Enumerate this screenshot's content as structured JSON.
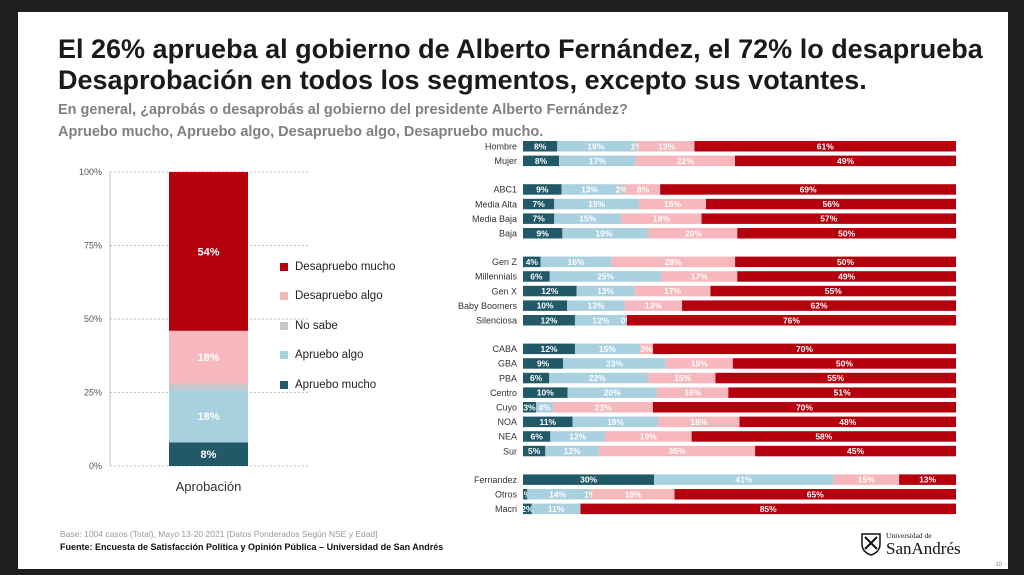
{
  "slide": {
    "title_line1": "El 26% aprueba al gobierno de Alberto Fernández, el 72% lo desaprueba",
    "title_line2": "Desaprobación en todos los segmentos, excepto sus votantes.",
    "subtitle_line1": "En general, ¿aprobás o desaprobás al gobierno del presidente Alberto Fernández?",
    "subtitle_line2": "Apruebo mucho, Apruebo algo, Desapruebo algo, Desapruebo mucho.",
    "base_note": "Base: 1004 casos (Total), Mayo 13-20 2021 [Datos Ponderados Según NSE y Edad]",
    "source": "Fuente: Encuesta de Satisfacción Política y Opinión Pública – Universidad de San Andrés",
    "logo_top": "Universidad de",
    "logo_name": "SanAndrés",
    "page_number": "10"
  },
  "chart_data": [
    {
      "type": "bar",
      "stacked": true,
      "categories": [
        "Aprobación"
      ],
      "ylim": [
        0,
        100
      ],
      "yticks": [
        "0%",
        "25%",
        "50%",
        "75%",
        "100%"
      ],
      "legend_position": "right",
      "series": [
        {
          "name": "Apruebo mucho",
          "values": [
            8
          ],
          "label": "8%",
          "color": "#215968"
        },
        {
          "name": "Apruebo algo",
          "values": [
            18
          ],
          "label": "18%",
          "color": "#a8d0df"
        },
        {
          "name": "No sabe",
          "values": [
            2
          ],
          "label": "",
          "color": "#c8c8c8"
        },
        {
          "name": "Desapruebo algo",
          "values": [
            18
          ],
          "label": "18%",
          "color": "#f6b8bc"
        },
        {
          "name": "Desapruebo mucho",
          "values": [
            54
          ],
          "label": "54%",
          "color": "#b5000d"
        }
      ],
      "legend_order": [
        "Desapruebo mucho",
        "Desapruebo algo",
        "No sabe",
        "Apruebo algo",
        "Apruebo mucho"
      ]
    },
    {
      "type": "bar",
      "orientation": "horizontal",
      "stacked": true,
      "normalized": true,
      "series_names": [
        "Apruebo mucho",
        "Apruebo algo",
        "No sabe",
        "Desapruebo algo",
        "Desapruebo mucho"
      ],
      "colors": [
        "#215968",
        "#a8d0df",
        "#c8c8c8",
        "#f6b8bc",
        "#b5000d"
      ],
      "groups": [
        {
          "rows": [
            {
              "label": "Hombre",
              "values": [
                8,
                18,
                1,
                13,
                61
              ],
              "labels": [
                "8%",
                "18%",
                "1%",
                "13%",
                "61%"
              ]
            },
            {
              "label": "Mujer",
              "values": [
                8,
                17,
                0,
                22,
                49
              ],
              "labels": [
                "8%",
                "17%",
                "",
                "22%",
                "49%"
              ]
            }
          ]
        },
        {
          "rows": [
            {
              "label": "ABC1",
              "values": [
                9,
                13,
                2,
                8,
                69
              ],
              "labels": [
                "9%",
                "13%",
                "2%",
                "8%",
                "69%"
              ]
            },
            {
              "label": "Media Alta",
              "values": [
                7,
                19,
                0,
                15,
                56
              ],
              "labels": [
                "7%",
                "19%",
                "",
                "15%",
                "56%"
              ]
            },
            {
              "label": "Media Baja",
              "values": [
                7,
                15,
                0,
                18,
                57
              ],
              "labels": [
                "7%",
                "15%",
                "",
                "18%",
                "57%"
              ]
            },
            {
              "label": "Baja",
              "values": [
                9,
                19,
                1,
                20,
                50
              ],
              "labels": [
                "9%",
                "19%",
                "",
                "20%",
                "50%"
              ]
            }
          ]
        },
        {
          "rows": [
            {
              "label": "Gen Z",
              "values": [
                4,
                16,
                0,
                28,
                50
              ],
              "labels": [
                "4%",
                "16%",
                "",
                "28%",
                "50%"
              ]
            },
            {
              "label": "Millennials",
              "values": [
                6,
                25,
                0,
                17,
                49
              ],
              "labels": [
                "6%",
                "25%",
                "",
                "17%",
                "49%"
              ]
            },
            {
              "label": "Gen X",
              "values": [
                12,
                13,
                0,
                17,
                55
              ],
              "labels": [
                "12%",
                "13%",
                "",
                "17%",
                "55%"
              ]
            },
            {
              "label": "Baby Boomers",
              "values": [
                10,
                13,
                0,
                13,
                62
              ],
              "labels": [
                "10%",
                "13%",
                "",
                "13%",
                "62%"
              ]
            },
            {
              "label": "Silenciosa",
              "values": [
                12,
                12,
                0,
                0,
                76
              ],
              "labels": [
                "12%",
                "12%",
                "",
                "0%",
                "76%"
              ]
            }
          ]
        },
        {
          "rows": [
            {
              "label": "CABA",
              "values": [
                12,
                15,
                0,
                3,
                70
              ],
              "labels": [
                "12%",
                "15%",
                "",
                "3%",
                "70%"
              ]
            },
            {
              "label": "GBA",
              "values": [
                9,
                23,
                0,
                15,
                50
              ],
              "labels": [
                "9%",
                "23%",
                "",
                "15%",
                "50%"
              ]
            },
            {
              "label": "PBA",
              "values": [
                6,
                22,
                1,
                15,
                55
              ],
              "labels": [
                "6%",
                "22%",
                "",
                "15%",
                "55%"
              ]
            },
            {
              "label": "Centro",
              "values": [
                10,
                20,
                0,
                16,
                51
              ],
              "labels": [
                "10%",
                "20%",
                "",
                "16%",
                "51%"
              ]
            },
            {
              "label": "Cuyo",
              "values": [
                3,
                4,
                0,
                23,
                70
              ],
              "labels": [
                "3%",
                "4%",
                "",
                "23%",
                "70%"
              ]
            },
            {
              "label": "NOA",
              "values": [
                11,
                19,
                0,
                18,
                48
              ],
              "labels": [
                "11%",
                "19%",
                "",
                "18%",
                "48%"
              ]
            },
            {
              "label": "NEA",
              "values": [
                6,
                12,
                0,
                19,
                58
              ],
              "labels": [
                "6%",
                "12%",
                "",
                "19%",
                "58%"
              ]
            },
            {
              "label": "Sur",
              "values": [
                5,
                12,
                0,
                35,
                45
              ],
              "labels": [
                "5%",
                "12%",
                "",
                "35%",
                "45%"
              ]
            }
          ]
        },
        {
          "rows": [
            {
              "label": "Fernandez",
              "values": [
                30,
                41,
                0,
                15,
                13
              ],
              "labels": [
                "30%",
                "41%",
                "",
                "15%",
                "13%"
              ]
            },
            {
              "label": "Otros",
              "values": [
                1,
                14,
                1,
                19,
                65
              ],
              "labels": [
                "1%",
                "14%",
                "1%",
                "19%",
                "65%"
              ]
            },
            {
              "label": "Macri",
              "values": [
                2,
                11,
                0,
                0,
                85
              ],
              "labels": [
                "2%",
                "11%",
                "",
                "",
                "85%"
              ]
            }
          ]
        }
      ]
    }
  ]
}
